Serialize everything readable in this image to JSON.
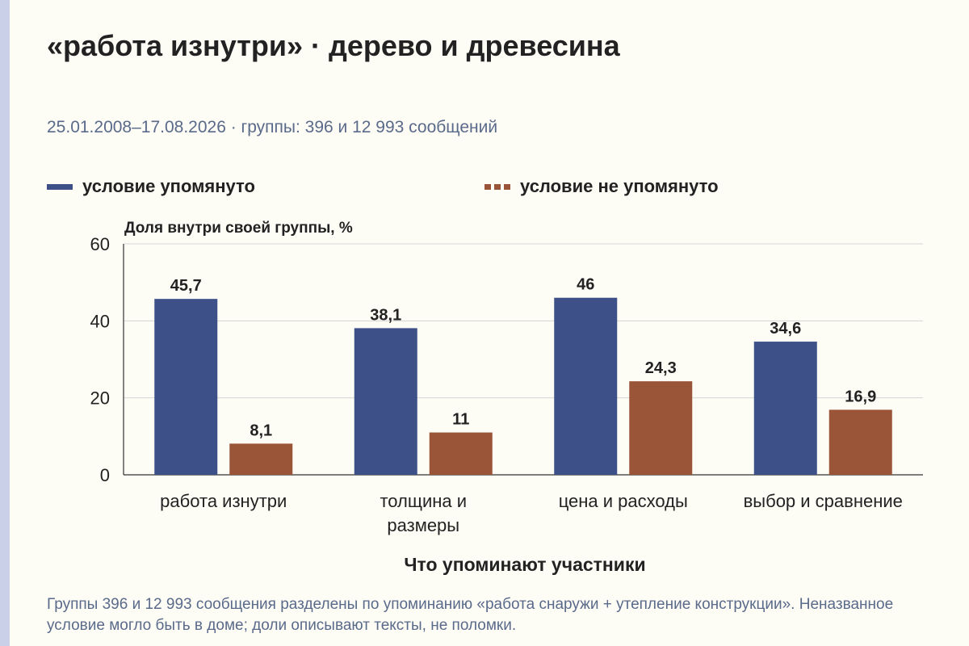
{
  "title": "«работа изнутри» · дерево и древесина",
  "subtitle": "25.01.2008–17.08.2026 · группы: 396 и 12 993 сообщений",
  "legend": [
    {
      "label": "условие упомянуто",
      "color": "#3d5088",
      "style": "solid"
    },
    {
      "label": "условие не упомянуто",
      "color": "#9a5538",
      "style": "dashed"
    }
  ],
  "footnote": "Группы 396 и 12 993 сообщения разделены по упоминанию «работа снаружи + утепление конструкции». Неназванное условие могло быть в доме; доли описывают тексты, не поломки.",
  "chart_data": {
    "type": "bar",
    "title": "«работа изнутри» · дерево и древесина",
    "xlabel": "Что упоминают участники",
    "ylabel": "Доля внутри своей группы, %",
    "ylim": [
      0,
      60
    ],
    "yticks": [
      0,
      20,
      40,
      60
    ],
    "grid": true,
    "legend_position": "top",
    "categories": [
      [
        "работа изнутри"
      ],
      [
        "толщина и",
        "размеры"
      ],
      [
        "цена и расходы"
      ],
      [
        "выбор и сравнение"
      ]
    ],
    "series": [
      {
        "name": "условие упомянуто",
        "color": "#3d5088",
        "values": [
          45.7,
          38.1,
          46,
          34.6
        ],
        "labels": [
          "45,7",
          "38,1",
          "46",
          "34,6"
        ]
      },
      {
        "name": "условие не упомянуто",
        "color": "#9a5538",
        "values": [
          8.1,
          11,
          24.3,
          16.9
        ],
        "labels": [
          "8,1",
          "11",
          "24,3",
          "16,9"
        ]
      }
    ]
  }
}
